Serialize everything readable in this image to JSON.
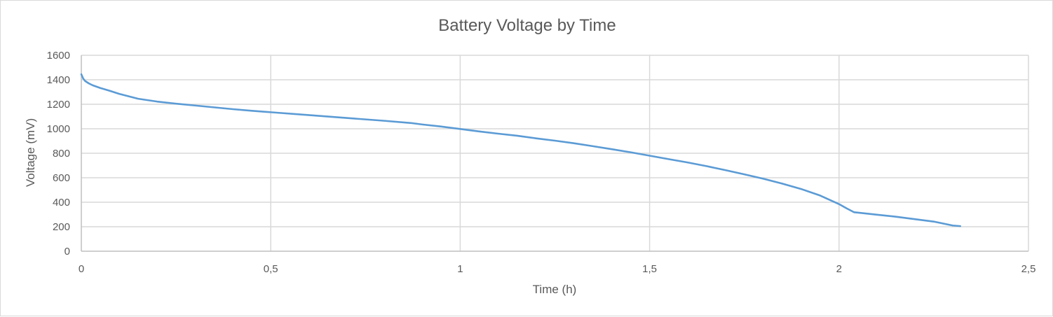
{
  "chart_data": {
    "type": "line",
    "title": "Battery Voltage by Time",
    "xlabel": "Time (h)",
    "ylabel": "Voltage (mV)",
    "xlim": [
      0,
      2.5
    ],
    "ylim": [
      0,
      1600
    ],
    "x_ticks": [
      0,
      0.5,
      1,
      1.5,
      2,
      2.5
    ],
    "x_tick_labels": [
      "0",
      "0,5",
      "1",
      "1,5",
      "2",
      "2,5"
    ],
    "y_ticks": [
      0,
      200,
      400,
      600,
      800,
      1000,
      1200,
      1400,
      1600
    ],
    "y_tick_labels": [
      "0",
      "200",
      "400",
      "600",
      "800",
      "1000",
      "1200",
      "1400",
      "1600"
    ],
    "grid": true,
    "legend": "none",
    "series": [
      {
        "color": "#5b9bd5",
        "points": [
          [
            0,
            1445
          ],
          [
            0.005,
            1410
          ],
          [
            0.01,
            1390
          ],
          [
            0.02,
            1370
          ],
          [
            0.03,
            1355
          ],
          [
            0.05,
            1333
          ],
          [
            0.075,
            1310
          ],
          [
            0.1,
            1285
          ],
          [
            0.15,
            1245
          ],
          [
            0.2,
            1222
          ],
          [
            0.25,
            1205
          ],
          [
            0.3,
            1190
          ],
          [
            0.35,
            1175
          ],
          [
            0.4,
            1160
          ],
          [
            0.45,
            1147
          ],
          [
            0.5,
            1135
          ],
          [
            0.6,
            1112
          ],
          [
            0.7,
            1088
          ],
          [
            0.8,
            1065
          ],
          [
            0.87,
            1047
          ],
          [
            0.9,
            1035
          ],
          [
            0.95,
            1018
          ],
          [
            1.0,
            998
          ],
          [
            1.05,
            978
          ],
          [
            1.1,
            960
          ],
          [
            1.15,
            943
          ],
          [
            1.2,
            922
          ],
          [
            1.25,
            903
          ],
          [
            1.3,
            882
          ],
          [
            1.35,
            858
          ],
          [
            1.4,
            833
          ],
          [
            1.45,
            808
          ],
          [
            1.5,
            780
          ],
          [
            1.55,
            752
          ],
          [
            1.6,
            725
          ],
          [
            1.65,
            695
          ],
          [
            1.7,
            662
          ],
          [
            1.75,
            628
          ],
          [
            1.8,
            592
          ],
          [
            1.85,
            552
          ],
          [
            1.9,
            508
          ],
          [
            1.95,
            455
          ],
          [
            2.0,
            385
          ],
          [
            2.02,
            350
          ],
          [
            2.04,
            318
          ],
          [
            2.06,
            312
          ],
          [
            2.1,
            298
          ],
          [
            2.15,
            282
          ],
          [
            2.2,
            262
          ],
          [
            2.25,
            242
          ],
          [
            2.3,
            210
          ],
          [
            2.32,
            205
          ]
        ]
      }
    ]
  }
}
